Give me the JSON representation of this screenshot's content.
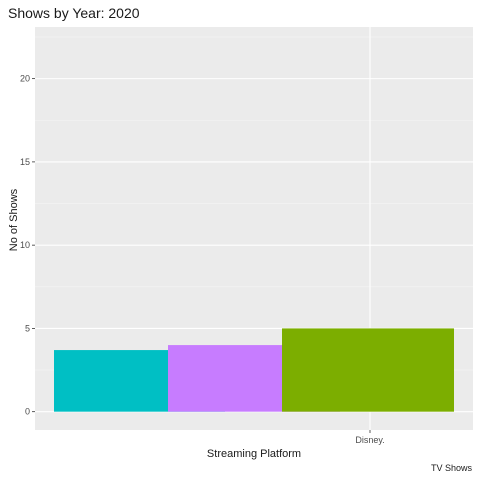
{
  "chart_data": {
    "type": "bar",
    "title": "Shows by Year: 2020",
    "xlabel": "Streaming Platform",
    "ylabel": "No of Shows",
    "caption": "TV Shows",
    "categories": [
      "Disney."
    ],
    "ylim": [
      -1.1,
      23.1
    ],
    "yticks": [
      0,
      5,
      10,
      15,
      20
    ],
    "grid": true,
    "bars": [
      {
        "value": 3.7,
        "color": "#00BFC4"
      },
      {
        "value": 4.0,
        "color": "#C77CFF"
      },
      {
        "value": 5.0,
        "color": "#7CAE00"
      }
    ]
  }
}
